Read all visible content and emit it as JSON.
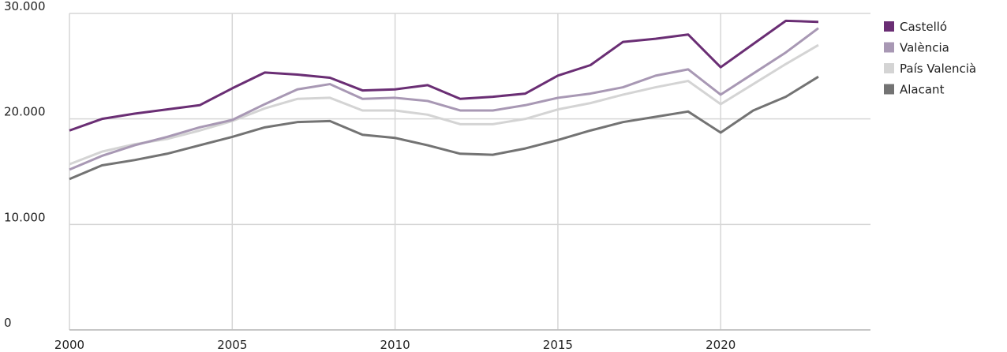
{
  "chart_data": {
    "type": "line",
    "x": [
      2000,
      2001,
      2002,
      2003,
      2004,
      2005,
      2006,
      2007,
      2008,
      2009,
      2010,
      2011,
      2012,
      2013,
      2014,
      2015,
      2016,
      2017,
      2018,
      2019,
      2020,
      2021,
      2022,
      2023
    ],
    "series": [
      {
        "name": "Castelló",
        "color": "#6a2e74",
        "values": [
          18900,
          20000,
          20500,
          20900,
          21300,
          22900,
          24400,
          24200,
          23900,
          22700,
          22800,
          23200,
          21900,
          22100,
          22400,
          24100,
          25100,
          27300,
          27600,
          28000,
          24900,
          27100,
          29300,
          29200
        ]
      },
      {
        "name": "València",
        "color": "#a898b4",
        "values": [
          15200,
          16500,
          17500,
          18300,
          19200,
          19900,
          21400,
          22800,
          23300,
          21900,
          22000,
          21700,
          20800,
          20800,
          21300,
          22000,
          22400,
          23000,
          24100,
          24700,
          22300,
          24300,
          26300,
          28600
        ]
      },
      {
        "name": "País Valencià",
        "color": "#d4d4d4",
        "values": [
          15700,
          16900,
          17600,
          18100,
          18900,
          19800,
          21000,
          21900,
          22000,
          20800,
          20800,
          20400,
          19500,
          19500,
          20000,
          20900,
          21500,
          22300,
          23000,
          23600,
          21400,
          23300,
          25200,
          27000
        ]
      },
      {
        "name": "Alacant",
        "color": "#737373",
        "values": [
          14300,
          15600,
          16100,
          16700,
          17500,
          18300,
          19200,
          19700,
          19800,
          18500,
          18200,
          17500,
          16700,
          16600,
          17200,
          18000,
          18900,
          19700,
          20200,
          20700,
          18700,
          20800,
          22100,
          24000
        ]
      }
    ],
    "xlim": [
      2000,
      2024.6
    ],
    "xticks": [
      2000,
      2005,
      2010,
      2015,
      2020
    ],
    "ylim": [
      0,
      30000
    ],
    "yticks": [
      0,
      {
        "value": 10000,
        "label": "10.000"
      },
      {
        "value": 20000,
        "label": "20.000"
      },
      {
        "value": 30000,
        "label": "30.000"
      }
    ],
    "grid": true,
    "legend": "right"
  }
}
